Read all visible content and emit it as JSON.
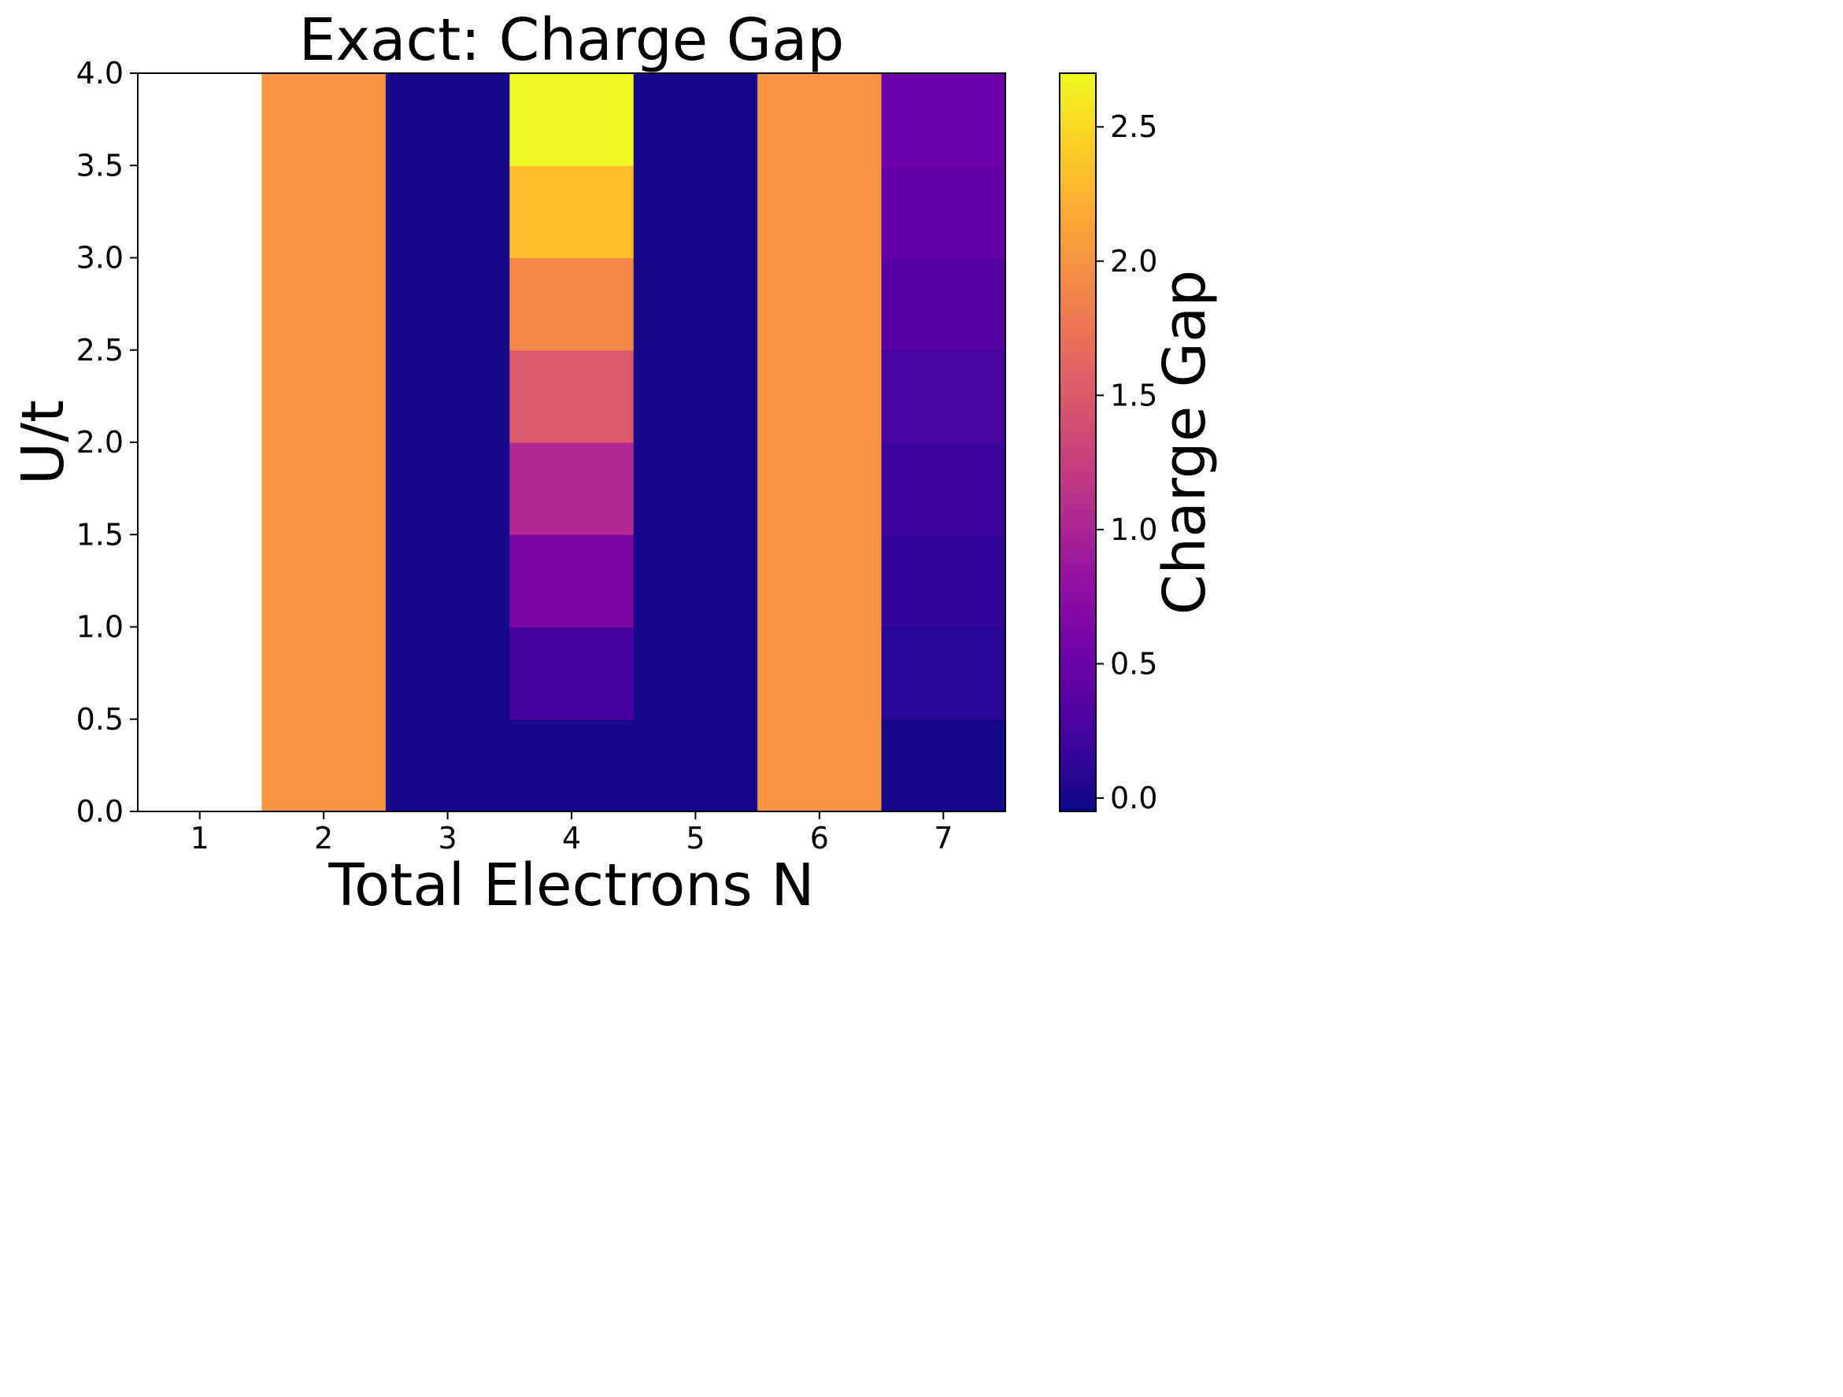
{
  "chart_data": {
    "type": "heatmap",
    "title": "Exact: Charge Gap",
    "xlabel": "Total Electrons N",
    "ylabel": "U/t",
    "colorbar_label": "Charge Gap",
    "colormap": "plasma",
    "x_categories": [
      1,
      2,
      3,
      4,
      5,
      6,
      7
    ],
    "y_bins": [
      [
        0.0,
        0.5
      ],
      [
        0.5,
        1.0
      ],
      [
        1.0,
        1.5
      ],
      [
        1.5,
        2.0
      ],
      [
        2.0,
        2.5
      ],
      [
        2.5,
        3.0
      ],
      [
        3.0,
        3.5
      ],
      [
        3.5,
        4.0
      ]
    ],
    "xlim": [
      0.5,
      7.5
    ],
    "ylim": [
      0.0,
      4.0
    ],
    "x_ticks": [
      "1",
      "2",
      "3",
      "4",
      "5",
      "6",
      "7"
    ],
    "y_ticks": [
      "0.0",
      "0.5",
      "1.0",
      "1.5",
      "2.0",
      "2.5",
      "3.0",
      "3.5",
      "4.0"
    ],
    "colorbar_range": [
      -0.05,
      2.7
    ],
    "colorbar_ticks": [
      "0.0",
      "0.5",
      "1.0",
      "1.5",
      "2.0",
      "2.5"
    ],
    "missing_color": "#ffffff",
    "values": [
      [
        null,
        2.0,
        0.0,
        0.0,
        0.0,
        2.0,
        0.0
      ],
      [
        null,
        2.0,
        0.0,
        0.27,
        0.0,
        2.0,
        0.1
      ],
      [
        null,
        2.0,
        0.0,
        0.62,
        0.0,
        2.0,
        0.15
      ],
      [
        null,
        2.0,
        0.0,
        1.05,
        0.0,
        2.0,
        0.2
      ],
      [
        null,
        2.0,
        0.0,
        1.5,
        0.0,
        2.0,
        0.28
      ],
      [
        null,
        2.0,
        0.0,
        1.9,
        0.0,
        2.0,
        0.35
      ],
      [
        null,
        2.0,
        0.0,
        2.3,
        0.0,
        2.0,
        0.45
      ],
      [
        null,
        2.0,
        0.0,
        2.7,
        0.0,
        2.0,
        0.52
      ]
    ]
  }
}
